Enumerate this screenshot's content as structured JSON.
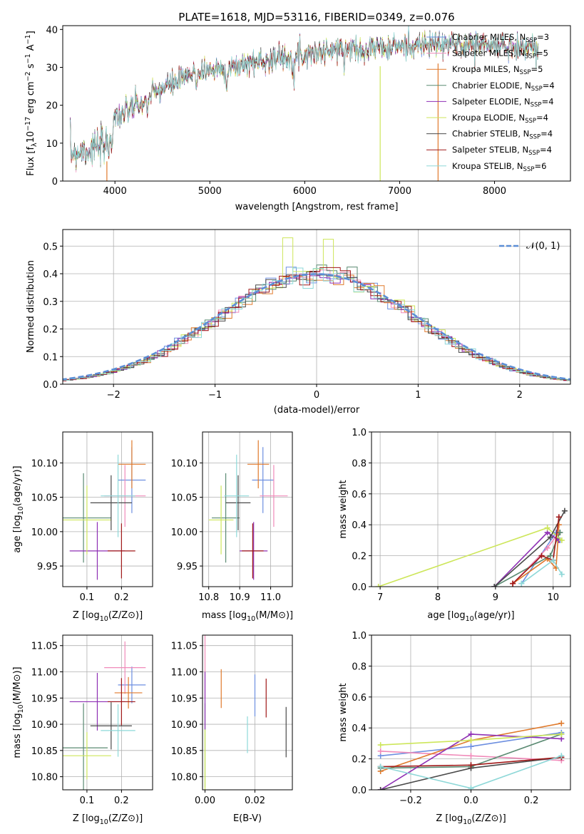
{
  "colors": {
    "Chabrier MILES": "#6d8fe0",
    "Salpeter MILES": "#f08ab9",
    "Kroupa MILES": "#e07a2c",
    "Chabrier ELODIE": "#5a8a72",
    "Salpeter ELODIE": "#8e2fb4",
    "Kroupa ELODIE": "#cde65a",
    "Chabrier STELIB": "#4a4a4a",
    "Salpeter STELIB": "#a01818",
    "Kroupa STELIB": "#8ed8d8"
  },
  "chart_data": [
    {
      "id": "spectrum",
      "type": "line",
      "title": "PLATE=1618, MJD=53116, FIBERID=0349, z=0.076",
      "xlabel": "wavelength [Angstrom, rest frame]",
      "ylabel": "Flux [f",
      "ylabel_parts": [
        "Flux [f",
        "λ",
        "10",
        "−17",
        " erg cm",
        "−2",
        " s",
        "−1",
        " A",
        "−1",
        "]"
      ],
      "xlim": [
        3450,
        8800
      ],
      "ylim": [
        0,
        41
      ],
      "xticks": [
        "4000",
        "5000",
        "6000",
        "7000",
        "8000"
      ],
      "yticks": [
        "0",
        "10",
        "20",
        "30",
        "40"
      ],
      "continuum": {
        "x": [
          3500,
          3900,
          4000,
          4300,
          4500,
          4900,
          5200,
          5600,
          6000,
          6500,
          7000,
          7400,
          7800,
          8200,
          8500
        ],
        "y": [
          7.5,
          9,
          17,
          21,
          24.5,
          29,
          30,
          32,
          33.5,
          35,
          35.5,
          36,
          36,
          35.5,
          35
        ]
      },
      "legend": [
        {
          "name": "Chabrier MILES",
          "base": "Chabrier MILES, N",
          "sub": "SSP",
          "val": "=3"
        },
        {
          "name": "Salpeter MILES",
          "base": "Salpeter MILES, N",
          "sub": "SSP",
          "val": "=5"
        },
        {
          "name": "Kroupa MILES",
          "base": "Kroupa MILES, N",
          "sub": "SSP",
          "val": "=5"
        },
        {
          "name": "Chabrier ELODIE",
          "base": "Chabrier ELODIE, N",
          "sub": "SSP",
          "val": "=4"
        },
        {
          "name": "Salpeter ELODIE",
          "base": "Salpeter ELODIE, N",
          "sub": "SSP",
          "val": "=4"
        },
        {
          "name": "Kroupa ELODIE",
          "base": "Kroupa ELODIE, N",
          "sub": "SSP",
          "val": "=4"
        },
        {
          "name": "Chabrier STELIB",
          "base": "Chabrier STELIB, N",
          "sub": "SSP",
          "val": "=4"
        },
        {
          "name": "Salpeter STELIB",
          "base": "Salpeter STELIB, N",
          "sub": "SSP",
          "val": "=4"
        },
        {
          "name": "Kroupa STELIB",
          "base": "Kroupa STELIB, N",
          "sub": "SSP",
          "val": "=6"
        }
      ]
    },
    {
      "id": "residuals",
      "type": "histogram",
      "xlabel": "(data-model)/error",
      "ylabel": "Normed distribution",
      "xlim": [
        -2.5,
        2.5
      ],
      "ylim": [
        0,
        0.56
      ],
      "xticks": [
        "−2",
        "−1",
        "0",
        "1",
        "2"
      ],
      "yticks": [
        "0.0",
        "0.1",
        "0.2",
        "0.3",
        "0.4",
        "0.5"
      ],
      "bin_width": 0.1,
      "reference": {
        "name": "𝒩(0, 1)",
        "mean": 0,
        "sigma": 1
      },
      "grid": true,
      "legend_position": "upper right"
    },
    {
      "id": "age_vs_Z",
      "type": "errorbar",
      "xlabel": "Z [log",
      "ylabel": "age  [log",
      "xlim": [
        0.03,
        0.29
      ],
      "ylim": [
        9.92,
        10.145
      ],
      "xticks": [
        "0.1",
        "0.2"
      ],
      "yticks": [
        "9.95",
        "10.00",
        "10.05",
        "10.10"
      ],
      "points": [
        {
          "s": "Chabrier MILES",
          "x": 0.23,
          "xe": 0.04,
          "y": 10.075,
          "ye": 0.048
        },
        {
          "s": "Salpeter MILES",
          "x": 0.21,
          "xe": 0.06,
          "y": 10.052,
          "ye": 0.045
        },
        {
          "s": "Kroupa MILES",
          "x": 0.23,
          "xe": 0.04,
          "y": 10.098,
          "ye": 0.035
        },
        {
          "s": "Chabrier ELODIE",
          "x": 0.09,
          "xe": 0.08,
          "y": 10.02,
          "ye": 0.065
        },
        {
          "s": "Salpeter ELODIE",
          "x": 0.13,
          "xe": 0.08,
          "y": 9.972,
          "ye": 0.042
        },
        {
          "s": "Kroupa ELODIE",
          "x": 0.1,
          "xe": 0.07,
          "y": 10.017,
          "ye": 0.05
        },
        {
          "s": "Chabrier STELIB",
          "x": 0.17,
          "xe": 0.06,
          "y": 10.042,
          "ye": 0.04
        },
        {
          "s": "Salpeter STELIB",
          "x": 0.2,
          "xe": 0.04,
          "y": 9.972,
          "ye": 0.04
        },
        {
          "s": "Kroupa STELIB",
          "x": 0.19,
          "xe": 0.05,
          "y": 10.052,
          "ye": 0.06
        }
      ]
    },
    {
      "id": "age_vs_mass",
      "type": "errorbar",
      "xlabel": "mass [log",
      "xlim": [
        10.78,
        11.07
      ],
      "ylim": [
        9.92,
        10.145
      ],
      "xticks": [
        "10.8",
        "10.9",
        "11.0"
      ],
      "yticks": [
        "9.95",
        "10.00",
        "10.05",
        "10.10"
      ],
      "points": [
        {
          "s": "Chabrier MILES",
          "x": 10.975,
          "xe": 0.035,
          "y": 10.075,
          "ye": 0.048
        },
        {
          "s": "Salpeter MILES",
          "x": 11.01,
          "xe": 0.045,
          "y": 10.052,
          "ye": 0.045
        },
        {
          "s": "Kroupa MILES",
          "x": 10.96,
          "xe": 0.035,
          "y": 10.098,
          "ye": 0.035
        },
        {
          "s": "Chabrier ELODIE",
          "x": 10.855,
          "xe": 0.045,
          "y": 10.02,
          "ye": 0.065
        },
        {
          "s": "Salpeter ELODIE",
          "x": 10.945,
          "xe": 0.045,
          "y": 9.972,
          "ye": 0.042
        },
        {
          "s": "Kroupa ELODIE",
          "x": 10.84,
          "xe": 0.04,
          "y": 10.017,
          "ye": 0.05
        },
        {
          "s": "Chabrier STELIB",
          "x": 10.895,
          "xe": 0.04,
          "y": 10.042,
          "ye": 0.04
        },
        {
          "s": "Salpeter STELIB",
          "x": 10.942,
          "xe": 0.035,
          "y": 9.972,
          "ye": 0.04
        },
        {
          "s": "Kroupa STELIB",
          "x": 10.89,
          "xe": 0.04,
          "y": 10.052,
          "ye": 0.06
        }
      ]
    },
    {
      "id": "weight_vs_age",
      "type": "line",
      "xlabel": "age  [log",
      "ylabel": "mass weight",
      "xlim": [
        6.85,
        10.3
      ],
      "ylim": [
        0,
        1.0
      ],
      "xticks": [
        "7",
        "8",
        "9",
        "10"
      ],
      "yticks": [
        "0.0",
        "0.2",
        "0.4",
        "0.6",
        "0.8",
        "1.0"
      ],
      "series": [
        {
          "s": "Chabrier MILES",
          "x": [
            9.45,
            10.05,
            10.12
          ],
          "y": [
            0.02,
            0.35,
            0.3
          ]
        },
        {
          "s": "Salpeter MILES",
          "x": [
            9.3,
            9.9,
            10.1
          ],
          "y": [
            0.02,
            0.25,
            0.35
          ]
        },
        {
          "s": "Kroupa MILES",
          "x": [
            9.3,
            9.9,
            10.05,
            10.1
          ],
          "y": [
            0.02,
            0.18,
            0.12,
            0.4
          ]
        },
        {
          "s": "Chabrier ELODIE",
          "x": [
            8.98,
            9.95,
            10.12
          ],
          "y": [
            0.0,
            0.2,
            0.35
          ]
        },
        {
          "s": "Salpeter ELODIE",
          "x": [
            8.98,
            9.9,
            10.1
          ],
          "y": [
            0.0,
            0.35,
            0.3
          ]
        },
        {
          "s": "Kroupa ELODIE",
          "x": [
            6.97,
            9.9,
            10.15
          ],
          "y": [
            0.0,
            0.38,
            0.3
          ]
        },
        {
          "s": "Chabrier STELIB",
          "x": [
            8.98,
            9.95,
            10.2
          ],
          "y": [
            0.0,
            0.32,
            0.49
          ]
        },
        {
          "s": "Salpeter STELIB",
          "x": [
            9.3,
            9.8,
            10.0,
            10.1
          ],
          "y": [
            0.02,
            0.2,
            0.17,
            0.45
          ]
        },
        {
          "s": "Kroupa STELIB",
          "x": [
            9.45,
            10.0,
            10.15
          ],
          "y": [
            0.02,
            0.17,
            0.08
          ]
        }
      ]
    },
    {
      "id": "mass_vs_Z",
      "type": "errorbar",
      "xlabel": "Z [log",
      "ylabel": "mass [log",
      "xlim": [
        0.03,
        0.29
      ],
      "ylim": [
        10.775,
        11.07
      ],
      "xticks": [
        "0.1",
        "0.2"
      ],
      "yticks": [
        "10.80",
        "10.85",
        "10.90",
        "10.95",
        "11.00",
        "11.05"
      ],
      "points": [
        {
          "s": "Chabrier MILES",
          "x": 0.23,
          "xe": 0.04,
          "y": 10.975,
          "ye": 0.035
        },
        {
          "s": "Salpeter MILES",
          "x": 0.21,
          "xe": 0.06,
          "y": 11.008,
          "ye": 0.05
        },
        {
          "s": "Kroupa MILES",
          "x": 0.22,
          "xe": 0.04,
          "y": 10.96,
          "ye": 0.03
        },
        {
          "s": "Chabrier ELODIE",
          "x": 0.09,
          "xe": 0.07,
          "y": 10.855,
          "ye": 0.085
        },
        {
          "s": "Salpeter ELODIE",
          "x": 0.13,
          "xe": 0.08,
          "y": 10.943,
          "ye": 0.055
        },
        {
          "s": "Kroupa ELODIE",
          "x": 0.1,
          "xe": 0.07,
          "y": 10.84,
          "ye": 0.045
        },
        {
          "s": "Chabrier STELIB",
          "x": 0.17,
          "xe": 0.06,
          "y": 10.897,
          "ye": 0.045
        },
        {
          "s": "Salpeter STELIB",
          "x": 0.2,
          "xe": 0.04,
          "y": 10.943,
          "ye": 0.045
        },
        {
          "s": "Kroupa STELIB",
          "x": 0.19,
          "xe": 0.05,
          "y": 10.888,
          "ye": 0.05
        }
      ]
    },
    {
      "id": "mass_vs_EBV",
      "type": "errorbar",
      "xlabel": "E(B-V)",
      "xlim": [
        -0.001,
        0.035
      ],
      "ylim": [
        10.775,
        11.07
      ],
      "xticks": [
        "0.00",
        "0.02"
      ],
      "yticks": [
        "10.80",
        "10.85",
        "10.90",
        "10.95",
        "11.00",
        "11.05"
      ],
      "points": [
        {
          "s": "Chabrier MILES",
          "x": 0.02,
          "xe": 0.0,
          "y": 10.955,
          "ye": 0.04
        },
        {
          "s": "Salpeter MILES",
          "x": 0.0,
          "xe": 0.0,
          "y": 11.01,
          "ye": 0.06
        },
        {
          "s": "Kroupa MILES",
          "x": 0.0065,
          "xe": 0.0,
          "y": 10.968,
          "ye": 0.037
        },
        {
          "s": "Chabrier ELODIE",
          "x": 0.0,
          "xe": 0.0,
          "y": 10.86,
          "ye": 0.08
        },
        {
          "s": "Salpeter ELODIE",
          "x": 0.0,
          "xe": 0.0,
          "y": 10.945,
          "ye": 0.055
        },
        {
          "s": "Kroupa ELODIE",
          "x": 0.0,
          "xe": 0.0,
          "y": 10.83,
          "ye": 0.06
        },
        {
          "s": "Chabrier STELIB",
          "x": 0.0325,
          "xe": 0.0,
          "y": 10.885,
          "ye": 0.048
        },
        {
          "s": "Salpeter STELIB",
          "x": 0.0245,
          "xe": 0.0,
          "y": 10.95,
          "ye": 0.037
        },
        {
          "s": "Kroupa STELIB",
          "x": 0.017,
          "xe": 0.0,
          "y": 10.88,
          "ye": 0.035
        }
      ]
    },
    {
      "id": "weight_vs_Z",
      "type": "line",
      "xlabel": "Z [log",
      "ylabel": "mass weight",
      "xlim": [
        -0.33,
        0.33
      ],
      "ylim": [
        0,
        1.0
      ],
      "xticks": [
        "−0.2",
        "0.0",
        "0.2"
      ],
      "yticks": [
        "0.0",
        "0.2",
        "0.4",
        "0.6",
        "0.8",
        "1.0"
      ],
      "series": [
        {
          "s": "Chabrier MILES",
          "x": [
            -0.3,
            0.0,
            0.3
          ],
          "y": [
            0.22,
            0.28,
            0.37
          ]
        },
        {
          "s": "Salpeter MILES",
          "x": [
            -0.3,
            0.0,
            0.3
          ],
          "y": [
            0.25,
            0.22,
            0.19
          ]
        },
        {
          "s": "Kroupa MILES",
          "x": [
            -0.3,
            0.0,
            0.3
          ],
          "y": [
            0.12,
            0.32,
            0.43
          ]
        },
        {
          "s": "Chabrier ELODIE",
          "x": [
            -0.3,
            0.0,
            0.3
          ],
          "y": [
            0.14,
            0.15,
            0.36
          ]
        },
        {
          "s": "Salpeter ELODIE",
          "x": [
            -0.3,
            0.0,
            0.3
          ],
          "y": [
            0.0,
            0.36,
            0.33
          ]
        },
        {
          "s": "Kroupa ELODIE",
          "x": [
            -0.3,
            0.0,
            0.3
          ],
          "y": [
            0.29,
            0.32,
            0.36
          ]
        },
        {
          "s": "Chabrier STELIB",
          "x": [
            -0.3,
            0.0,
            0.3
          ],
          "y": [
            0.0,
            0.14,
            0.21
          ]
        },
        {
          "s": "Salpeter STELIB",
          "x": [
            -0.3,
            0.0,
            0.3
          ],
          "y": [
            0.15,
            0.16,
            0.21
          ]
        },
        {
          "s": "Kroupa STELIB",
          "x": [
            -0.3,
            0.0,
            0.3
          ],
          "y": [
            0.15,
            0.01,
            0.22
          ]
        }
      ]
    }
  ]
}
